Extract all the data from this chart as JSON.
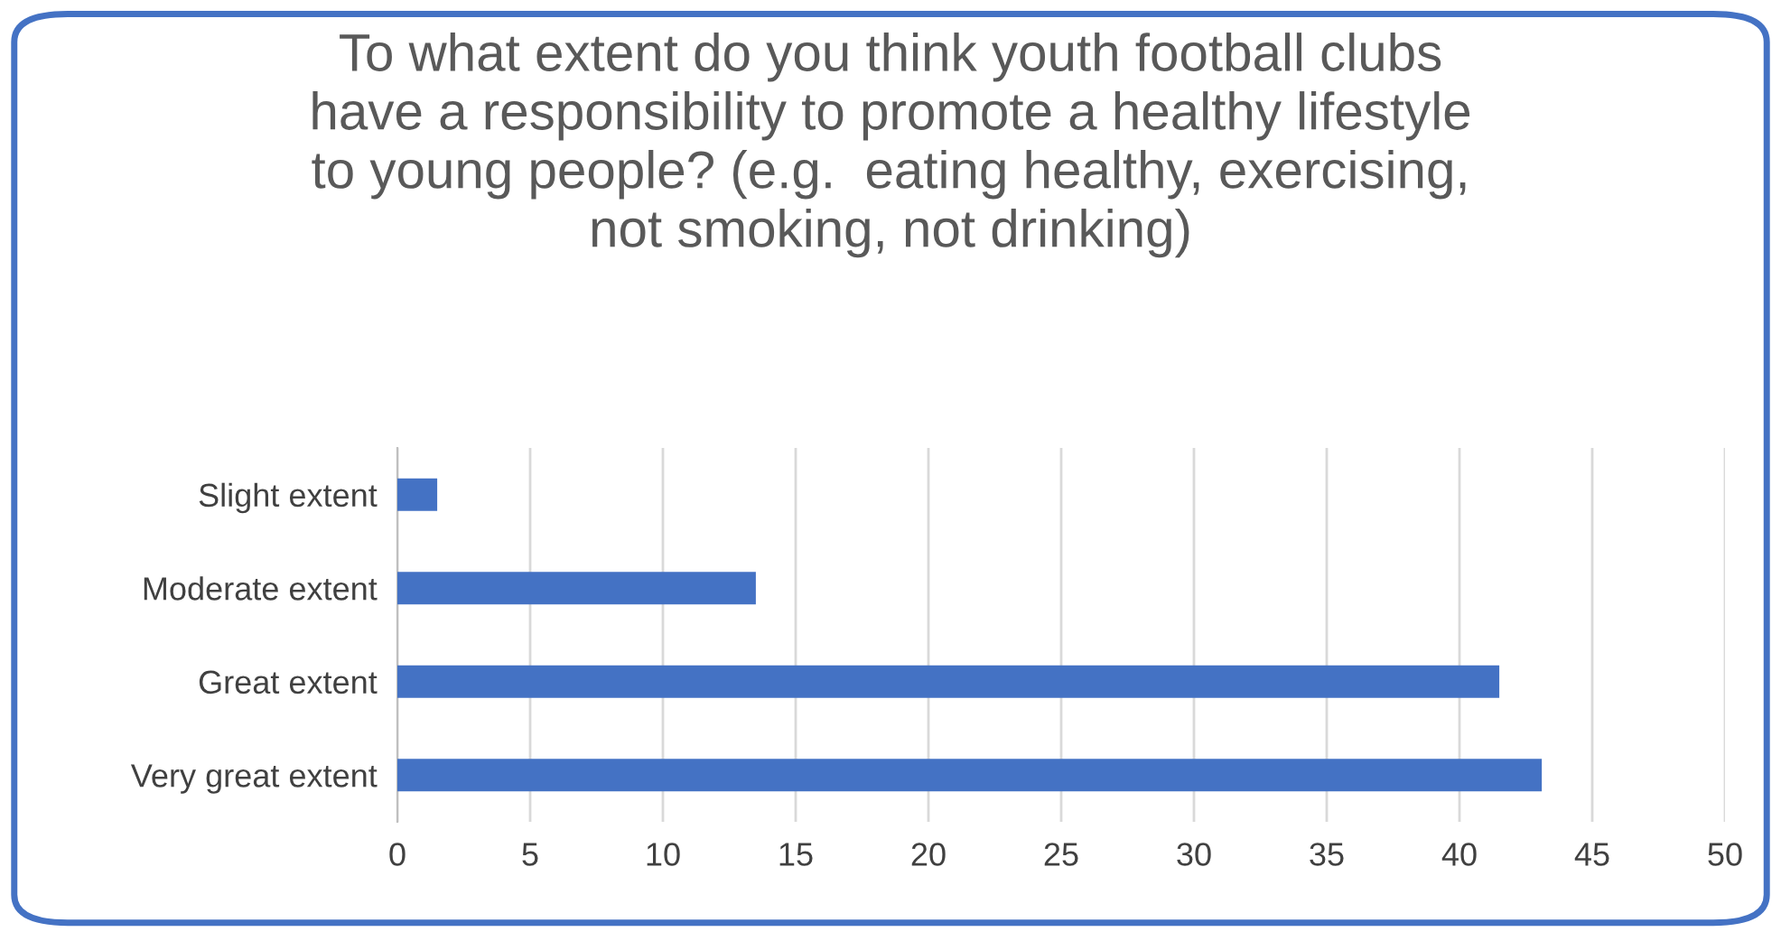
{
  "chart_data": {
    "type": "bar",
    "orientation": "horizontal",
    "title": "To what extent do you think youth football clubs\nhave a responsibility to promote a healthy lifestyle\nto young people? (e.g.  eating healthy, exercising,\nnot smoking, not drinking)",
    "categories": [
      "Slight extent",
      "Moderate extent",
      "Great extent",
      "Very great extent"
    ],
    "values": [
      1.5,
      13.5,
      41.5,
      43.1
    ],
    "color": "#4472c4",
    "xlim": [
      0,
      50
    ],
    "xticks": [
      0,
      5,
      10,
      15,
      20,
      25,
      30,
      35,
      40,
      45,
      50
    ],
    "grid": "x"
  }
}
